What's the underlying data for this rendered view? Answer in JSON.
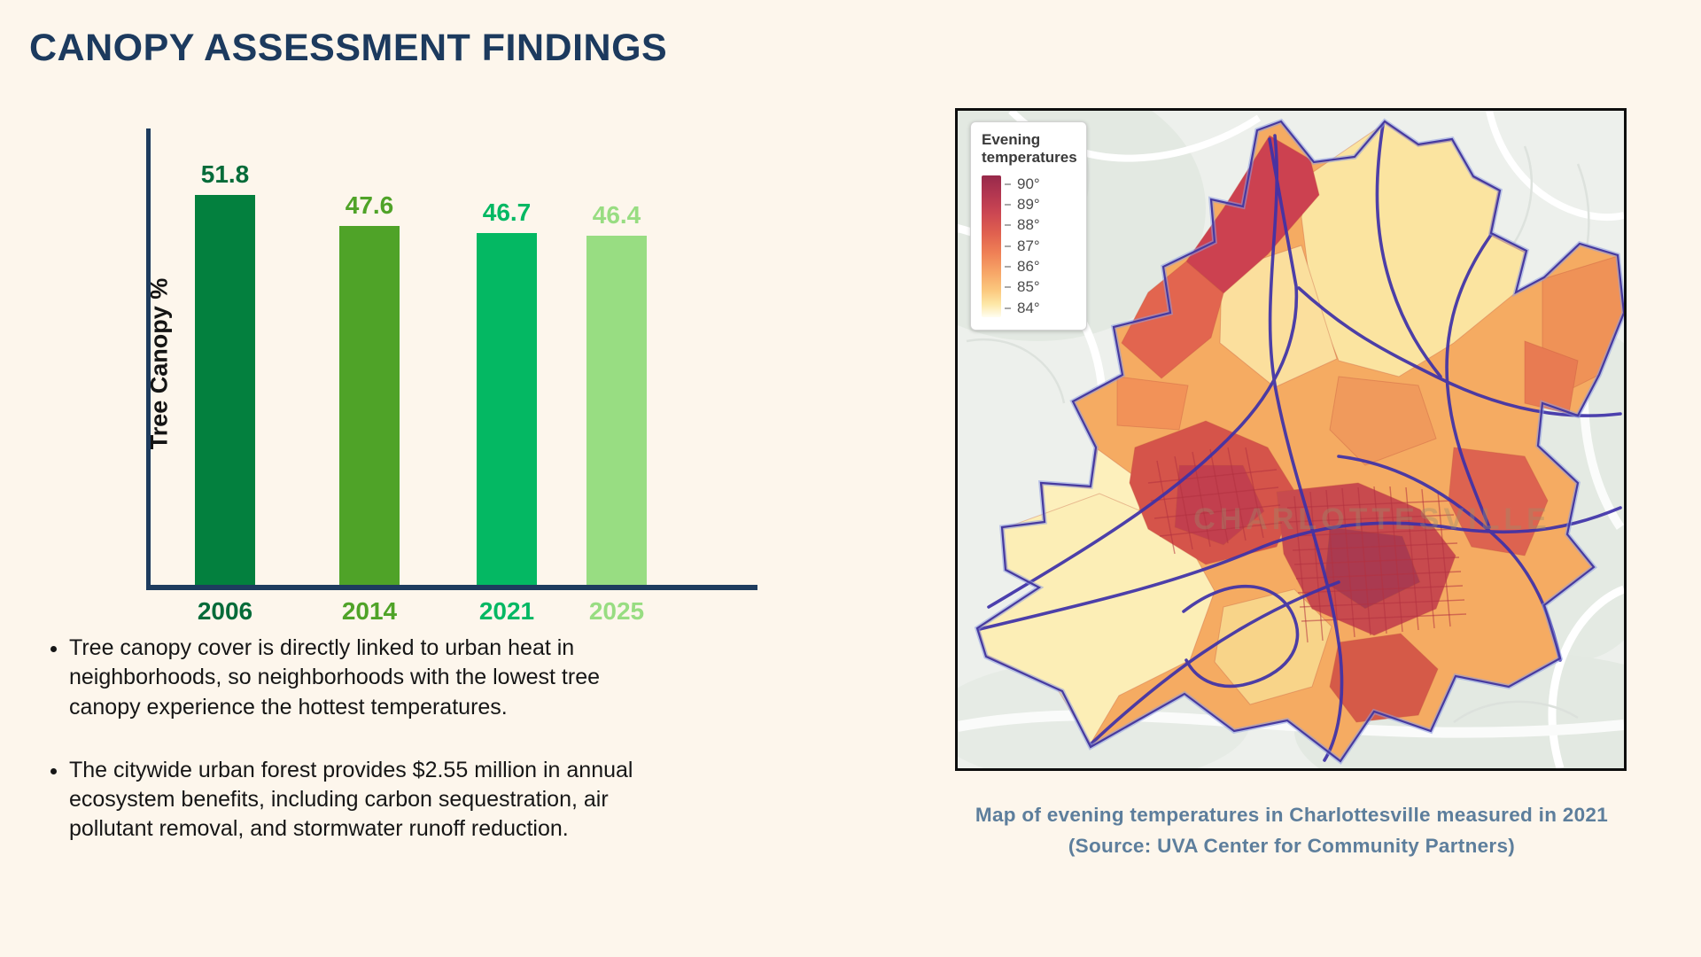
{
  "title": "CANOPY ASSESSMENT FINDINGS",
  "chart_data": {
    "type": "bar",
    "categories": [
      "2006",
      "2014",
      "2021",
      "2025"
    ],
    "values": [
      51.8,
      47.6,
      46.7,
      46.4
    ],
    "ylabel": "Tree Canopy %",
    "xlabel": "",
    "ylim": [
      0,
      55
    ],
    "grid": false,
    "bar_colors": [
      "#03803e",
      "#4fa328",
      "#04b863",
      "#98dd82"
    ],
    "label_colors": [
      "#056b39",
      "#4fa328",
      "#04b863",
      "#98dd82"
    ],
    "axis_color": "#1e3c5e"
  },
  "bullets": [
    "Tree canopy cover is directly linked to urban heat in neighborhoods, so neighborhoods with the lowest tree canopy experience the hottest temperatures.",
    "The citywide urban forest provides $2.55 million in annual ecosystem benefits, including carbon sequestration, air pollutant removal, and stormwater runoff reduction."
  ],
  "map": {
    "legend": {
      "title": "Evening temperatures",
      "ticks": [
        "90°",
        "89°",
        "88°",
        "87°",
        "86°",
        "85°",
        "84°"
      ]
    },
    "watermark": "CHARLOTTESVILLE",
    "caption": "Map of evening temperatures in Charlottesville measured in 2021 (Source: UVA Center for Community Partners)"
  },
  "colors": {
    "background": "#fdf6ec",
    "title": "#1c3a5e",
    "caption": "#5d7e9c",
    "map_hot": "#a83648",
    "map_warm": "#e0614f",
    "map_mild": "#f5ab62",
    "map_cool": "#fceeb6",
    "map_roads": "#3e31a8"
  }
}
